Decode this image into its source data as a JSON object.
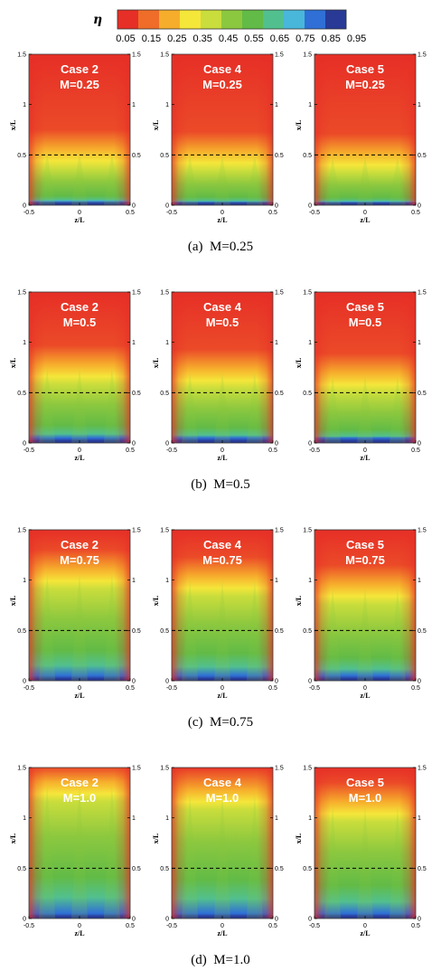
{
  "chart_data": {
    "type": "heatmap",
    "colorbar": {
      "symbol": "η",
      "ticks": [
        "0.05",
        "0.15",
        "0.25",
        "0.35",
        "0.45",
        "0.55",
        "0.65",
        "0.75",
        "0.85",
        "0.95"
      ],
      "colors": [
        "#e62f27",
        "#ef6d28",
        "#f6ad2c",
        "#f5e63a",
        "#c9dd3c",
        "#8cc83f",
        "#62bb46",
        "#52c08e",
        "#49b7d9",
        "#2f6fd6",
        "#283a96"
      ]
    },
    "x_ticks": [
      "-0.5",
      "0",
      "0.5"
    ],
    "y_ticks": [
      "0",
      "0.5",
      "1",
      "1.5"
    ],
    "y_ticks_right": [
      "0",
      "0.5",
      "1",
      "1.5"
    ],
    "xlabel": "z/L",
    "ylabel": "x/L",
    "xlim": [
      -0.5,
      0.5
    ],
    "ylim": [
      0,
      1.5
    ],
    "reference_line_x_over_L": 0.5,
    "groups": [
      {
        "caption": "(a)  M=0.25",
        "M": 0.25,
        "plots": [
          {
            "case": "Case 2",
            "m_label": "M=0.25",
            "film_extent": 0.17,
            "green_extent": 0.4
          },
          {
            "case": "Case 4",
            "m_label": "M=0.25",
            "film_extent": 0.15,
            "green_extent": 0.38
          },
          {
            "case": "Case 5",
            "m_label": "M=0.25",
            "film_extent": 0.14,
            "green_extent": 0.36
          }
        ]
      },
      {
        "caption": "(b)  M=0.5",
        "M": 0.5,
        "plots": [
          {
            "case": "Case 2",
            "m_label": "M=0.5",
            "film_extent": 0.32,
            "green_extent": 0.62
          },
          {
            "case": "Case 4",
            "m_label": "M=0.5",
            "film_extent": 0.28,
            "green_extent": 0.58
          },
          {
            "case": "Case 5",
            "m_label": "M=0.5",
            "film_extent": 0.24,
            "green_extent": 0.54
          }
        ]
      },
      {
        "caption": "(c)  M=0.75",
        "M": 0.75,
        "plots": [
          {
            "case": "Case 2",
            "m_label": "M=0.75",
            "film_extent": 0.55,
            "green_extent": 0.95
          },
          {
            "case": "Case 4",
            "m_label": "M=0.75",
            "film_extent": 0.5,
            "green_extent": 0.88
          },
          {
            "case": "Case 5",
            "m_label": "M=0.75",
            "film_extent": 0.42,
            "green_extent": 0.8
          }
        ]
      },
      {
        "caption": "(d)  M=1.0",
        "M": 1.0,
        "plots": [
          {
            "case": "Case 2",
            "m_label": "M=1.0",
            "film_extent": 0.75,
            "green_extent": 1.2
          },
          {
            "case": "Case 4",
            "m_label": "M=1.0",
            "film_extent": 0.7,
            "green_extent": 1.12
          },
          {
            "case": "Case 5",
            "m_label": "M=1.0",
            "film_extent": 0.6,
            "green_extent": 1.0
          }
        ]
      }
    ]
  }
}
